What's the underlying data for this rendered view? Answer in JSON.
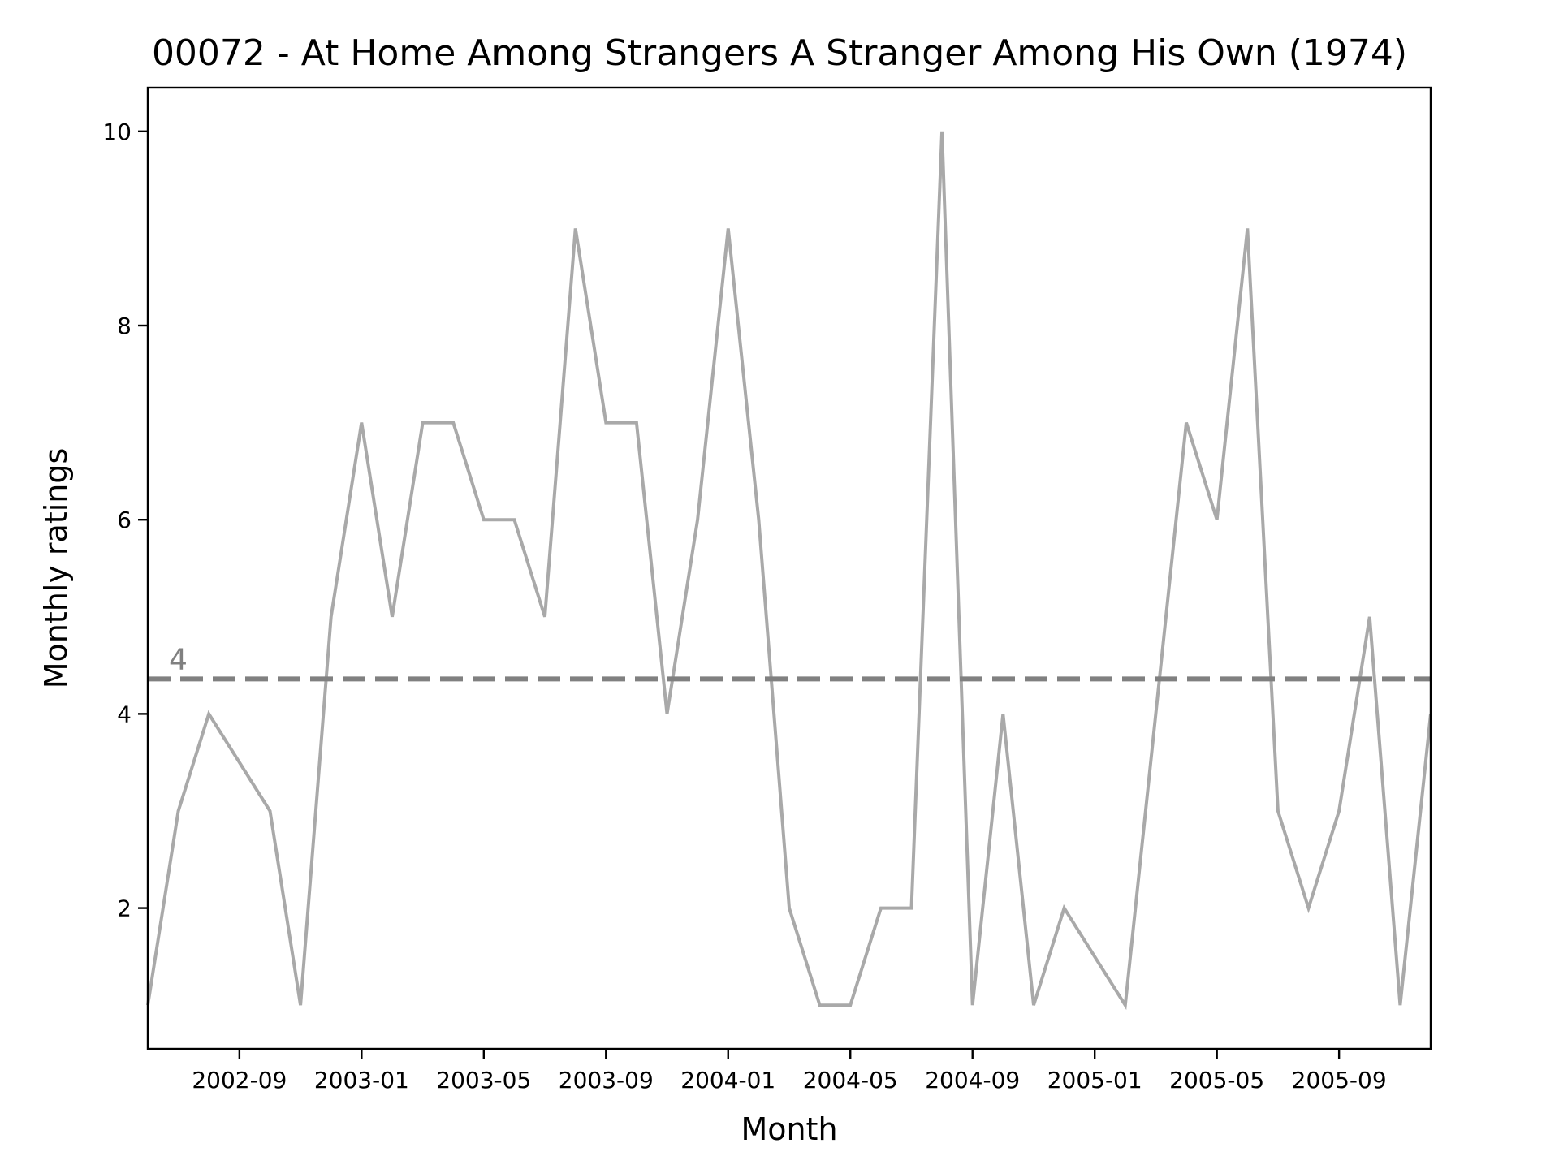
{
  "chart_data": {
    "type": "line",
    "title": "00072 - At Home Among Strangers A Stranger Among His Own (1974)",
    "xlabel": "Month",
    "ylabel": "Monthly ratings",
    "xlim": [
      "2002-06",
      "2005-12"
    ],
    "ylim": [
      0.55,
      10.45
    ],
    "yticks": [
      2,
      4,
      6,
      8,
      10
    ],
    "xticks": [
      "2002-09",
      "2003-01",
      "2003-05",
      "2003-09",
      "2004-01",
      "2004-05",
      "2004-09",
      "2005-01",
      "2005-05",
      "2005-09"
    ],
    "grid": false,
    "legend": "none",
    "series": [
      {
        "color": "#a9a9a9",
        "x": [
          "2002-06",
          "2002-07",
          "2002-08",
          "2002-09",
          "2002-10",
          "2002-11",
          "2002-12",
          "2003-01",
          "2003-02",
          "2003-03",
          "2003-04",
          "2003-05",
          "2003-06",
          "2003-07",
          "2003-08",
          "2003-09",
          "2003-10",
          "2003-11",
          "2003-12",
          "2004-01",
          "2004-02",
          "2004-03",
          "2004-04",
          "2004-05",
          "2004-06",
          "2004-07",
          "2004-08",
          "2004-09",
          "2004-10",
          "2004-11",
          "2004-12",
          "2005-01",
          "2005-02",
          "2005-03",
          "2005-04",
          "2005-05",
          "2005-06",
          "2005-07",
          "2005-08",
          "2005-09",
          "2005-10",
          "2005-11",
          "2005-12"
        ],
        "values": [
          1,
          3,
          4,
          3.5,
          3,
          1,
          5,
          7,
          5,
          7,
          7,
          6,
          6,
          5,
          9,
          7,
          7,
          4,
          6,
          9,
          6,
          2,
          1,
          1,
          2,
          2,
          10,
          1,
          4,
          1,
          2,
          1.5,
          1,
          4,
          7,
          6,
          9,
          3,
          2,
          3,
          5,
          1,
          4
        ]
      }
    ],
    "reference_line": {
      "value": 4.36,
      "label": "4",
      "color": "#808080",
      "style": "dashed"
    }
  }
}
